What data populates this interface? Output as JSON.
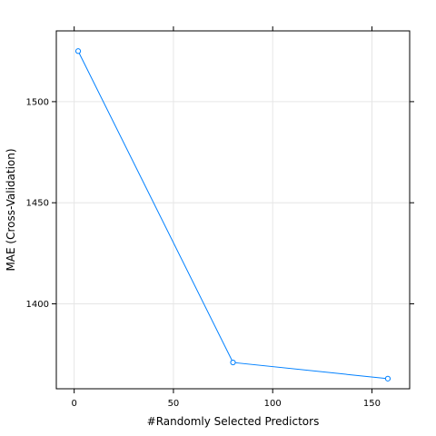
{
  "chart_data": {
    "type": "line",
    "title": "",
    "xlabel": "#Randomly Selected Predictors",
    "ylabel": "MAE (Cross-Validation)",
    "x": [
      2,
      80,
      158
    ],
    "series": [
      {
        "values": [
          1525,
          1371,
          1363
        ]
      }
    ],
    "xlim": [
      -9,
      169
    ],
    "ylim": [
      1358,
      1535
    ],
    "x_ticks": [
      0,
      50,
      100,
      150
    ],
    "y_ticks": [
      1400,
      1450,
      1500
    ],
    "x_tick_labels": [
      "0",
      "50",
      "100",
      "150"
    ],
    "y_tick_labels": [
      "1400",
      "1450",
      "1500"
    ],
    "grid": true,
    "markers": "open-circle",
    "colors": {
      "series": "#0080ff",
      "grid": "#e6e6e6",
      "frame": "#000000"
    }
  }
}
